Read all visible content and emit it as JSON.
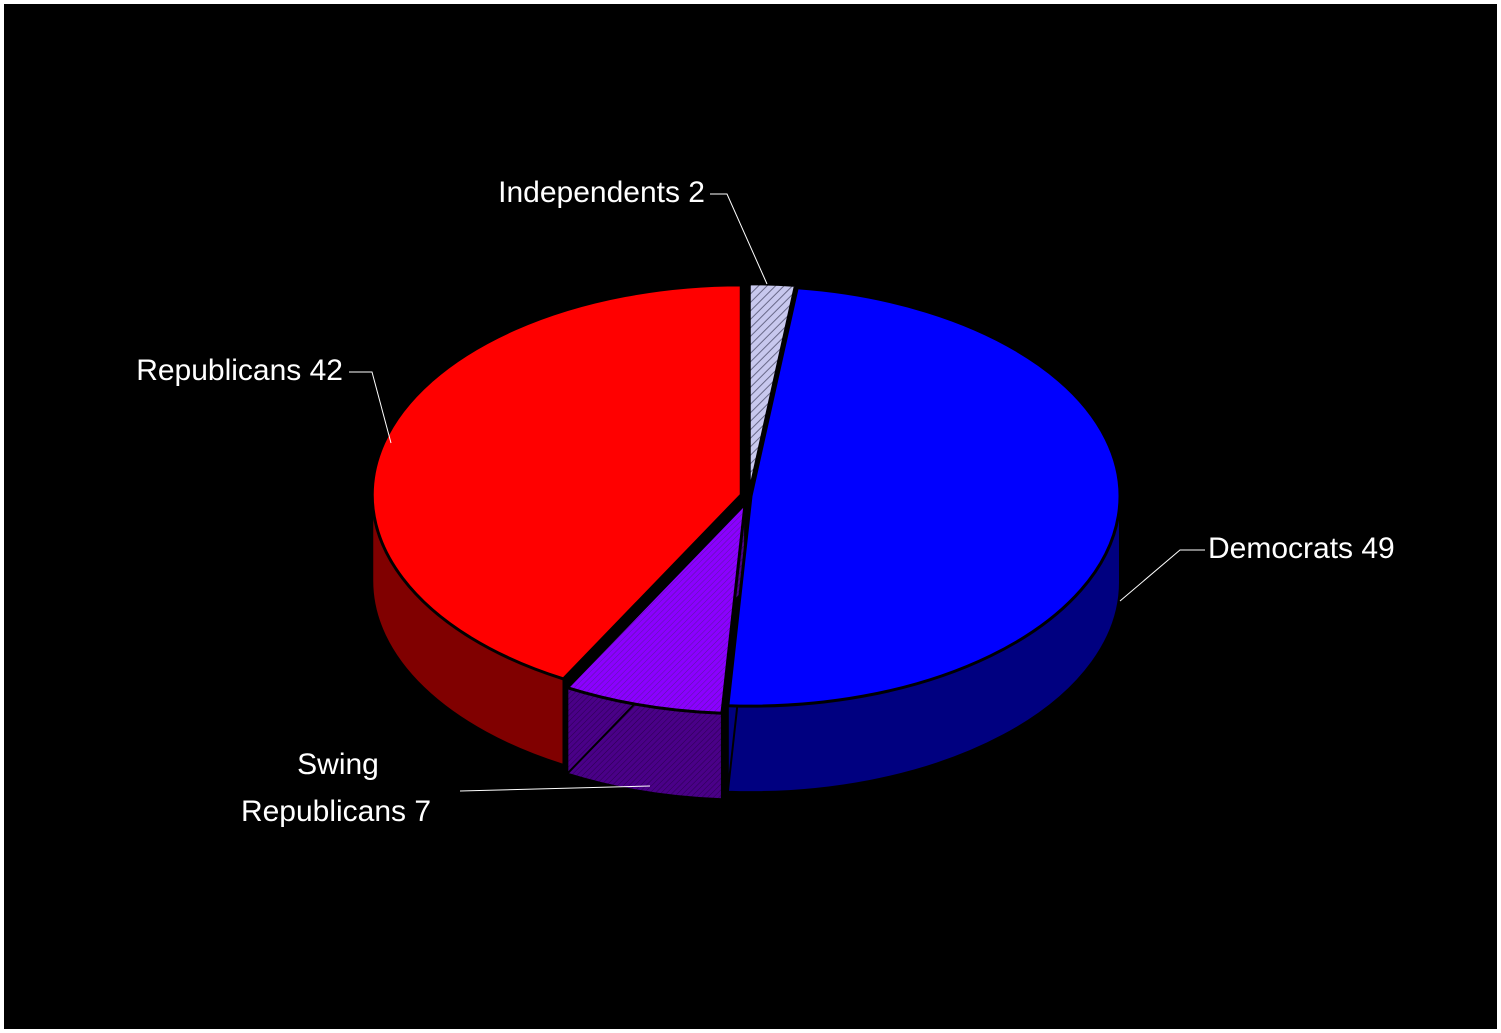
{
  "chart_data": {
    "type": "pie",
    "style": "3d-exploded-tilted",
    "background": "#000000",
    "title": "",
    "slices": [
      {
        "label": "Independents",
        "value": 2,
        "label_lines": [
          "Independents 2"
        ],
        "color": "#c8c8ee",
        "pattern": "diagonal-hatch"
      },
      {
        "label": "Democrats",
        "value": 49,
        "label_lines": [
          "Democrats 49"
        ],
        "color": "#0000ff",
        "pattern": "none"
      },
      {
        "label": "Swing Republicans",
        "value": 7,
        "label_lines": [
          "Swing",
          "Republicans 7"
        ],
        "color": "#8b00ff",
        "pattern": "fine-hatch"
      },
      {
        "label": "Republicans",
        "value": 42,
        "label_lines": [
          "Republicans 42"
        ],
        "color": "#ff0000",
        "pattern": "none"
      }
    ]
  }
}
